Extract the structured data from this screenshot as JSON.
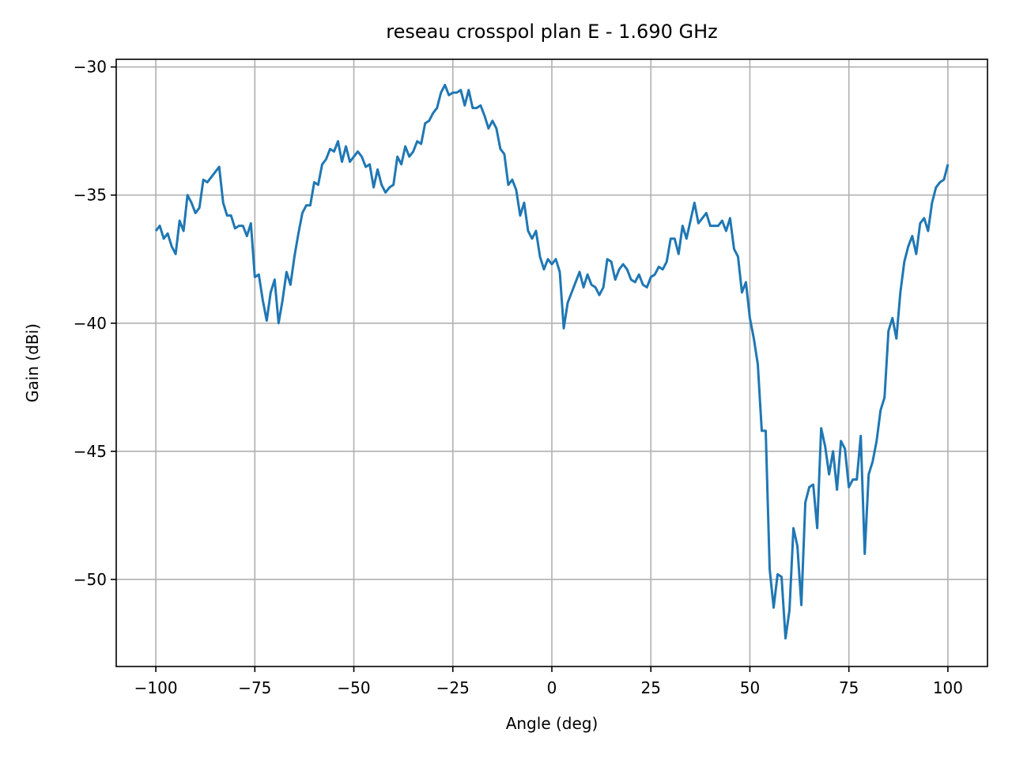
{
  "chart_data": {
    "type": "line",
    "title": "reseau crosspol plan E - 1.690 GHz",
    "x_label": "Angle (deg)",
    "y_label": "Gain (dBi)",
    "x": [
      -100,
      -99,
      -98,
      -97,
      -96,
      -95,
      -94,
      -93,
      -92,
      -91,
      -90,
      -89,
      -88,
      -87,
      -86,
      -85,
      -84,
      -83,
      -82,
      -81,
      -80,
      -79,
      -78,
      -77,
      -76,
      -75,
      -74,
      -73,
      -72,
      -71,
      -70,
      -69,
      -68,
      -67,
      -66,
      -65,
      -64,
      -63,
      -62,
      -61,
      -60,
      -59,
      -58,
      -57,
      -56,
      -55,
      -54,
      -53,
      -52,
      -51,
      -50,
      -49,
      -48,
      -47,
      -46,
      -45,
      -44,
      -43,
      -42,
      -41,
      -40,
      -39,
      -38,
      -37,
      -36,
      -35,
      -34,
      -33,
      -32,
      -31,
      -30,
      -29,
      -28,
      -27,
      -26,
      -25,
      -24,
      -23,
      -22,
      -21,
      -20,
      -19,
      -18,
      -17,
      -16,
      -15,
      -14,
      -13,
      -12,
      -11,
      -10,
      -9,
      -8,
      -7,
      -6,
      -5,
      -4,
      -3,
      -2,
      -1,
      0,
      1,
      2,
      3,
      4,
      5,
      6,
      7,
      8,
      9,
      10,
      11,
      12,
      13,
      14,
      15,
      16,
      17,
      18,
      19,
      20,
      21,
      22,
      23,
      24,
      25,
      26,
      27,
      28,
      29,
      30,
      31,
      32,
      33,
      34,
      35,
      36,
      37,
      38,
      39,
      40,
      41,
      42,
      43,
      44,
      45,
      46,
      47,
      48,
      49,
      50,
      51,
      52,
      53,
      54,
      55,
      56,
      57,
      58,
      59,
      60,
      61,
      62,
      63,
      64,
      65,
      66,
      67,
      68,
      69,
      70,
      71,
      72,
      73,
      74,
      75,
      76,
      77,
      78,
      79,
      80,
      81,
      82,
      83,
      84,
      85,
      86,
      87,
      88,
      89,
      90,
      91,
      92,
      93,
      94,
      95,
      96,
      97,
      98,
      99,
      100
    ],
    "series": [
      {
        "color": "#1f77b4",
        "values": [
          -36.4,
          -36.2,
          -36.7,
          -36.5,
          -37.0,
          -37.3,
          -36.0,
          -36.4,
          -35.0,
          -35.3,
          -35.7,
          -35.5,
          -34.4,
          -34.5,
          -34.3,
          -34.1,
          -33.9,
          -35.3,
          -35.8,
          -35.8,
          -36.3,
          -36.2,
          -36.2,
          -36.6,
          -36.1,
          -38.2,
          -38.1,
          -39.1,
          -39.9,
          -38.8,
          -38.3,
          -40.0,
          -39.1,
          -38.0,
          -38.5,
          -37.4,
          -36.5,
          -35.7,
          -35.4,
          -35.4,
          -34.5,
          -34.6,
          -33.8,
          -33.6,
          -33.2,
          -33.3,
          -32.9,
          -33.7,
          -33.1,
          -33.7,
          -33.5,
          -33.3,
          -33.5,
          -33.9,
          -33.8,
          -34.7,
          -34.0,
          -34.6,
          -34.9,
          -34.7,
          -34.6,
          -33.5,
          -33.8,
          -33.1,
          -33.5,
          -33.3,
          -32.9,
          -33.0,
          -32.2,
          -32.1,
          -31.8,
          -31.6,
          -31.0,
          -30.7,
          -31.1,
          -31.0,
          -31.0,
          -30.9,
          -31.5,
          -30.9,
          -31.6,
          -31.6,
          -31.5,
          -31.9,
          -32.4,
          -32.1,
          -32.4,
          -33.2,
          -33.4,
          -34.6,
          -34.4,
          -34.8,
          -35.8,
          -35.3,
          -36.4,
          -36.7,
          -36.4,
          -37.4,
          -37.9,
          -37.5,
          -37.7,
          -37.5,
          -38.0,
          -40.2,
          -39.2,
          -38.8,
          -38.4,
          -38.0,
          -38.6,
          -38.1,
          -38.5,
          -38.6,
          -38.9,
          -38.6,
          -37.5,
          -37.6,
          -38.3,
          -37.9,
          -37.7,
          -37.9,
          -38.3,
          -38.4,
          -38.1,
          -38.5,
          -38.6,
          -38.2,
          -38.1,
          -37.8,
          -37.9,
          -37.6,
          -36.7,
          -36.7,
          -37.3,
          -36.2,
          -36.7,
          -36.0,
          -35.3,
          -36.1,
          -35.9,
          -35.7,
          -36.2,
          -36.2,
          -36.2,
          -36.0,
          -36.4,
          -35.9,
          -37.1,
          -37.4,
          -38.8,
          -38.4,
          -39.8,
          -40.6,
          -41.6,
          -44.2,
          -44.2,
          -49.6,
          -51.1,
          -49.8,
          -49.9,
          -52.3,
          -51.2,
          -48.0,
          -48.7,
          -51.0,
          -47.0,
          -46.4,
          -46.3,
          -48.0,
          -44.1,
          -44.8,
          -45.9,
          -45.0,
          -46.5,
          -44.6,
          -44.9,
          -46.4,
          -46.1,
          -46.1,
          -44.4,
          -49.0,
          -45.9,
          -45.4,
          -44.6,
          -43.4,
          -42.9,
          -40.3,
          -39.8,
          -40.6,
          -38.8,
          -37.6,
          -37.0,
          -36.6,
          -37.3,
          -36.1,
          -35.9,
          -36.4,
          -35.3,
          -34.7,
          -34.5,
          -34.4,
          -33.8
        ]
      }
    ],
    "xlim": [
      -110,
      110
    ],
    "ylim": [
      -53.4,
      -29.7
    ],
    "xticks": [
      {
        "value": -100,
        "label": "−100"
      },
      {
        "value": -75,
        "label": "−75"
      },
      {
        "value": -50,
        "label": "−50"
      },
      {
        "value": -25,
        "label": "−25"
      },
      0,
      25,
      50,
      75,
      100
    ],
    "yticks": [
      {
        "value": -30,
        "label": "−30"
      },
      {
        "value": -35,
        "label": "−35"
      },
      {
        "value": -40,
        "label": "−40"
      },
      {
        "value": -45,
        "label": "−45"
      },
      {
        "value": -50,
        "label": "−50"
      }
    ],
    "grid": true
  }
}
